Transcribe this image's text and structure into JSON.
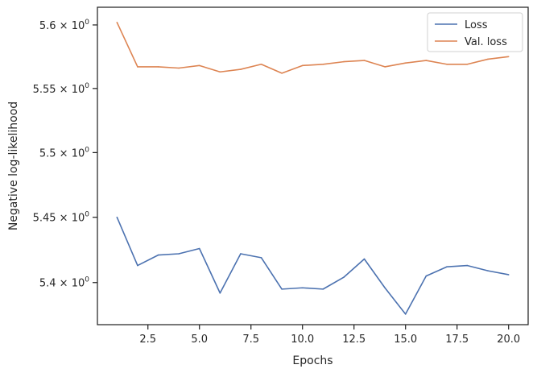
{
  "chart_data": {
    "type": "line",
    "xlabel": "Epochs",
    "ylabel": "Negative log-likelihood",
    "xlim": [
      0.05,
      20.95
    ],
    "ylim": [
      5.368,
      5.614
    ],
    "y_scale": "log",
    "grid": false,
    "legend_position": "top-right",
    "x_ticks": [
      {
        "value": 2.5,
        "label": "2.5"
      },
      {
        "value": 5.0,
        "label": "5.0"
      },
      {
        "value": 7.5,
        "label": "7.5"
      },
      {
        "value": 10.0,
        "label": "10.0"
      },
      {
        "value": 12.5,
        "label": "12.5"
      },
      {
        "value": 15.0,
        "label": "15.0"
      },
      {
        "value": 17.5,
        "label": "17.5"
      },
      {
        "value": 20.0,
        "label": "20.0"
      }
    ],
    "y_ticks": [
      {
        "value": 5.4,
        "mantissa": "5.4"
      },
      {
        "value": 5.45,
        "mantissa": "5.45"
      },
      {
        "value": 5.5,
        "mantissa": "5.5"
      },
      {
        "value": 5.55,
        "mantissa": "5.55"
      },
      {
        "value": 5.6,
        "mantissa": "5.6"
      }
    ],
    "y_tick_times": "×",
    "y_tick_base": "10",
    "y_tick_exponent": "0",
    "x": [
      1,
      2,
      3,
      4,
      5,
      6,
      7,
      8,
      9,
      10,
      11,
      12,
      13,
      14,
      15,
      16,
      17,
      18,
      19,
      20
    ],
    "series": [
      {
        "name": "Loss",
        "color": "#4c72b0",
        "values": [
          5.45,
          5.413,
          5.421,
          5.422,
          5.426,
          5.392,
          5.422,
          5.419,
          5.395,
          5.396,
          5.395,
          5.404,
          5.418,
          5.396,
          5.376,
          5.405,
          5.412,
          5.413,
          5.409,
          5.406
        ]
      },
      {
        "name": "Val. loss",
        "color": "#dd8452",
        "values": [
          5.602,
          5.567,
          5.567,
          5.566,
          5.568,
          5.563,
          5.565,
          5.569,
          5.562,
          5.568,
          5.569,
          5.571,
          5.572,
          5.567,
          5.57,
          5.572,
          5.569,
          5.569,
          5.573,
          5.575
        ]
      }
    ]
  }
}
